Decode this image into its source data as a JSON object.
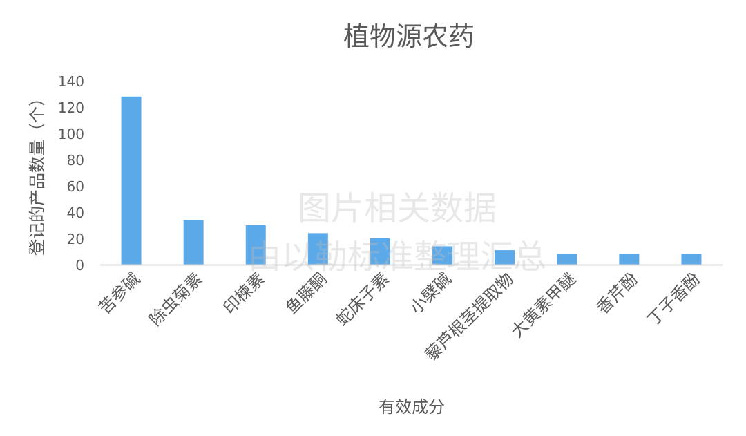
{
  "chart_data": {
    "type": "bar",
    "title": "植物源农药",
    "xlabel": "有效成分",
    "ylabel": "登记的产品数量（个）",
    "categories": [
      "苦参碱",
      "除虫菊素",
      "印楝素",
      "鱼藤酮",
      "蛇床子素",
      "小檗碱",
      "藜芦根茎提取物",
      "大黄素甲醚",
      "香芹酚",
      "丁子香酚"
    ],
    "values": [
      128,
      34,
      30,
      24,
      20,
      14,
      11,
      8,
      8,
      8
    ],
    "ylim": [
      0,
      140
    ],
    "yticks": [
      0,
      20,
      40,
      60,
      80,
      100,
      120,
      140
    ],
    "grid": false,
    "legend": "none",
    "bar_color": "#5BA9E9",
    "axis_color": "#D9D9D9"
  },
  "watermark": {
    "line1": "图片相关数据",
    "line2": "由以勒标准整理汇总"
  }
}
